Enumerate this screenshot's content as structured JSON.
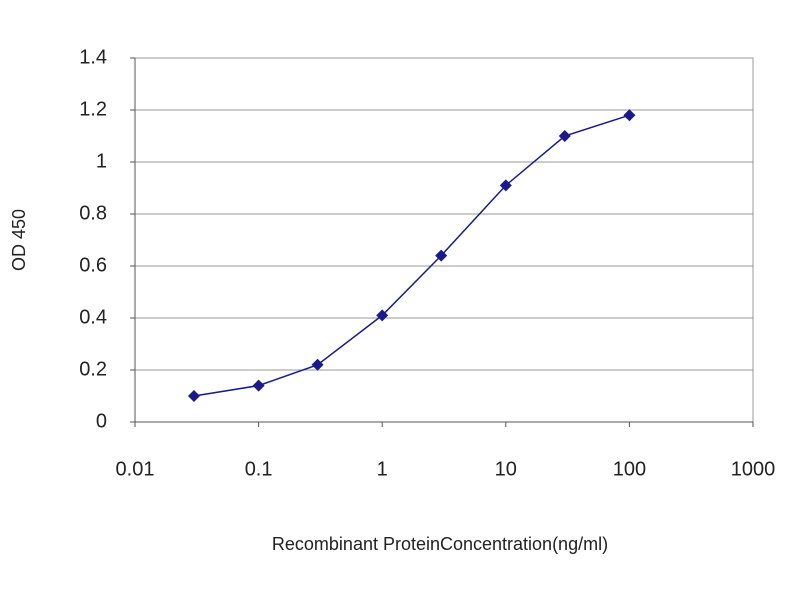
{
  "chart_data": {
    "type": "line",
    "x_label": "Recombinant ProteinConcentration(ng/ml)",
    "y_label": "OD 450",
    "x": [
      0.03,
      0.1,
      0.3,
      1,
      3,
      10,
      30,
      100
    ],
    "values": [
      0.1,
      0.14,
      0.22,
      0.41,
      0.64,
      0.91,
      1.1,
      1.18
    ],
    "color": "#1a1a8c",
    "xscale": "log",
    "xlim": [
      0.01,
      1000
    ],
    "xticks": [
      0.01,
      0.1,
      1,
      10,
      100,
      1000
    ],
    "ylim": [
      0,
      1.4
    ],
    "yticks": [
      0,
      0.2,
      0.4,
      0.6,
      0.8,
      1,
      1.2,
      1.4
    ],
    "grid": true
  }
}
